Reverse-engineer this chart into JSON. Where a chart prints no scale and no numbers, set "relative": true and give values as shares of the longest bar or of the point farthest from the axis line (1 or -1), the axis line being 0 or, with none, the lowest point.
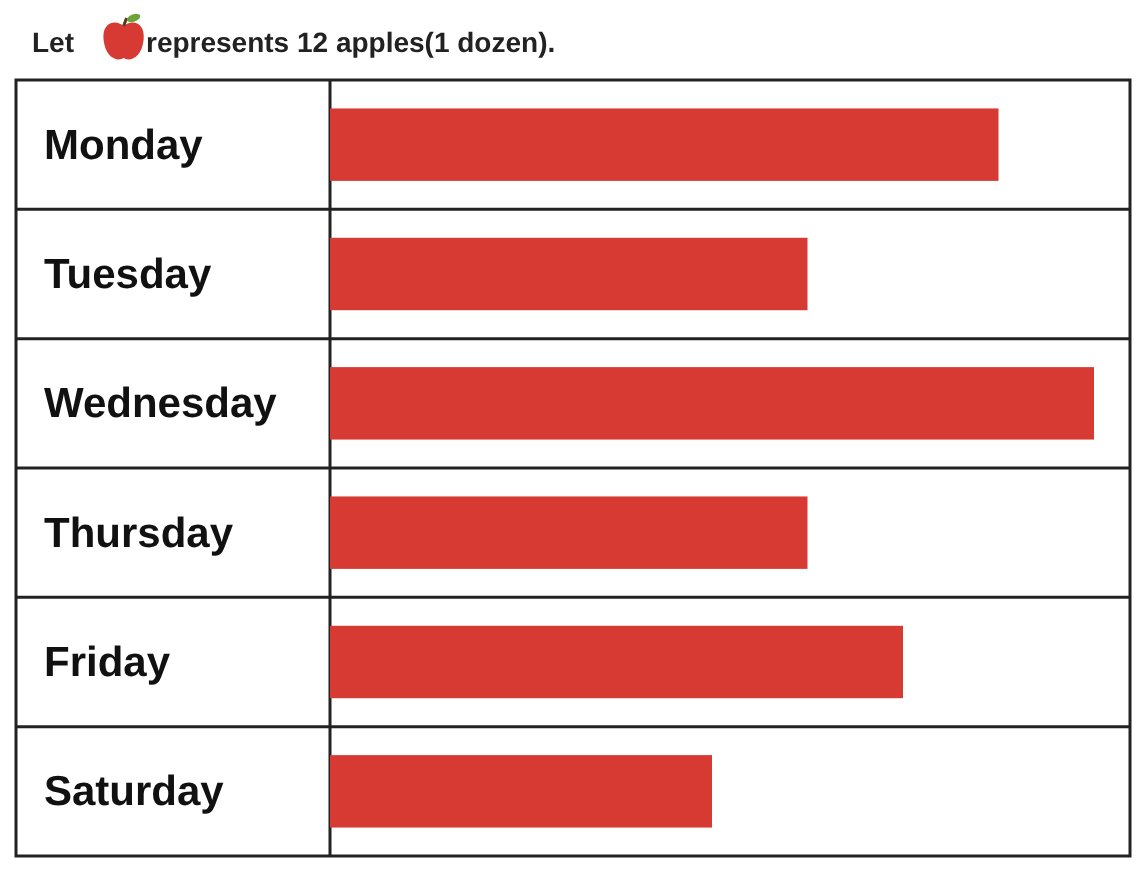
{
  "chart_data": {
    "type": "bar",
    "orientation": "horizontal",
    "relative": true,
    "title": "Let represents 12 apples(1 dozen).",
    "categories": [
      "Monday",
      "Tuesday",
      "Wednesday",
      "Thursday",
      "Friday",
      "Saturday"
    ],
    "values": [
      0.875,
      0.625,
      1,
      0.625,
      0.75,
      0.5
    ],
    "color": "#d63a32",
    "grid": "y"
  }
}
